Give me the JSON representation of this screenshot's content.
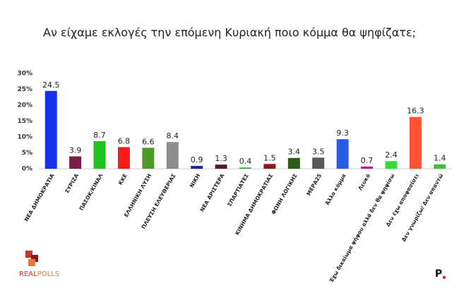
{
  "chart_data": {
    "type": "bar",
    "title": "Αν είχαμε εκλογές την επόμενη Κυριακή ποιο κόμμα θα ψηφίζατε;",
    "categories": [
      "ΝΕΑ ΔΗΜΟΚΡΑΤΙΑ",
      "ΣΥΡΙΖΑ",
      "ΠΑΣΟΚ/ΚΙΝΑΛ",
      "ΚΚΕ",
      "ΕΛΛΗΝΙΚΗ ΛΥΣΗ",
      "ΠΛΕΥΣΗ ΕΛΕΥΘΕΡΙΑΣ",
      "ΝΙΚΗ",
      "ΝΕΑ ΑΡΙΣΤΕΡΑ",
      "ΣΠΑΡΤΙΑΤΕΣ",
      "ΚΙΝΗΜΑ ΔΗΜΟΚΡΑΤΙΑΣ",
      "ΦΩΝΗ ΛΟΓΙΚΗΣ",
      "ΜΕΡΑ25",
      "Άλλο κόμμα",
      "Λευκό",
      "Έχω δικαίωμα ψήφου αλλά δεν θα ψηφίσω",
      "Δεν έχω αποφασίσει",
      "Δεν γνωρίζω/ Δεν απαντώ"
    ],
    "values": [
      24.5,
      3.9,
      8.7,
      6.8,
      6.6,
      8.4,
      0.9,
      1.3,
      0.4,
      1.5,
      3.4,
      3.5,
      9.3,
      0.7,
      2.4,
      16.3,
      1.4
    ],
    "colors": [
      "#1430e8",
      "#7a1e48",
      "#1fc41f",
      "#ff1a1a",
      "#4e9a28",
      "#8e8e8e",
      "#1b2a8c",
      "#5a1838",
      "#3bb33b",
      "#8c1c1c",
      "#2e5a18",
      "#575757",
      "#2a5be6",
      "#c3187c",
      "#33dd33",
      "#ff5233",
      "#45bb45"
    ],
    "ylim": [
      0,
      30
    ],
    "yticks": [
      {
        "value": 0,
        "label": "0%"
      },
      {
        "value": 5,
        "label": "5%"
      },
      {
        "value": 10,
        "label": "10%"
      },
      {
        "value": 15,
        "label": "15%"
      },
      {
        "value": 20,
        "label": "20%"
      },
      {
        "value": 25,
        "label": "25%"
      },
      {
        "value": 30,
        "label": "30%"
      }
    ],
    "grid": false
  },
  "branding": {
    "logo_left": "REAL",
    "logo_right": "POLLS",
    "mark": "P"
  }
}
